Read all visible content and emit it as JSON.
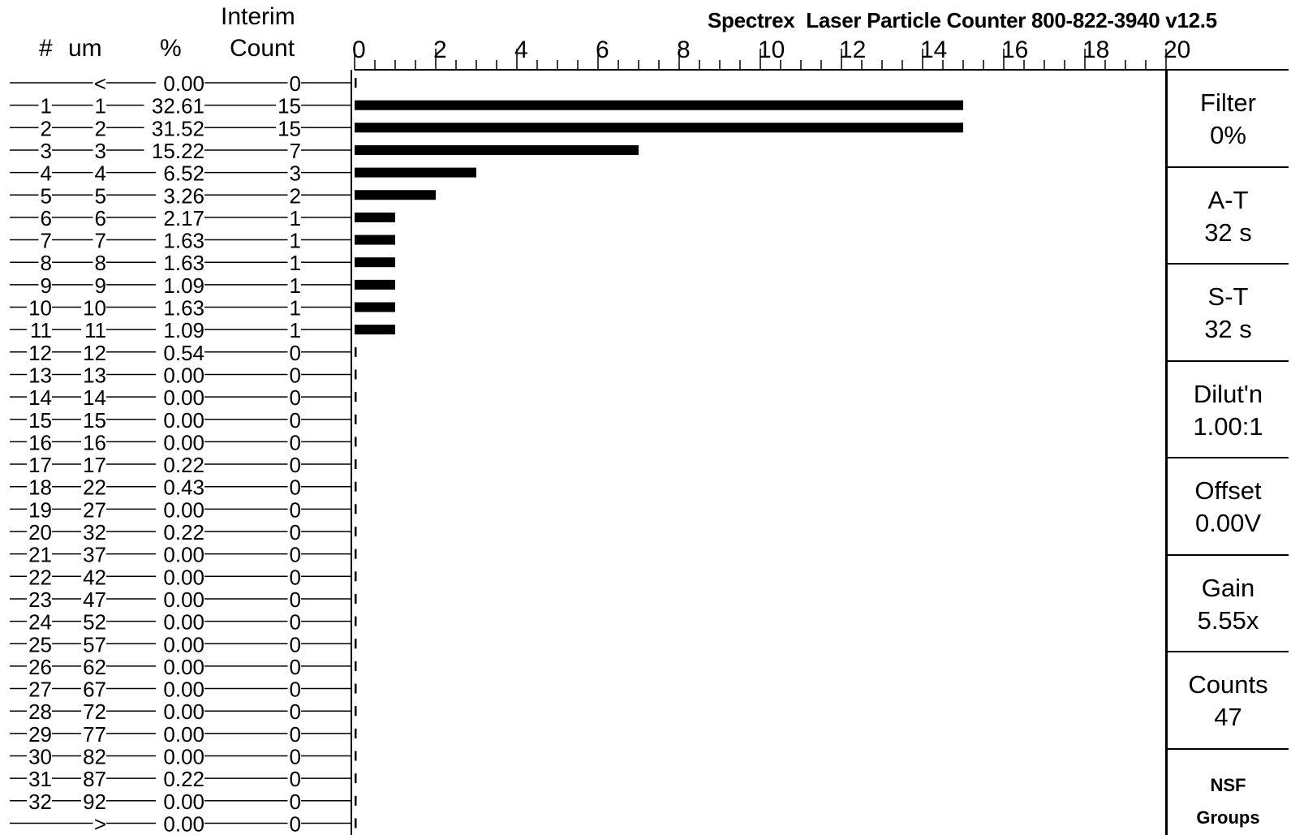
{
  "title": "Spectrex  Laser Particle Counter 800-822-3940 v12.5",
  "headers": {
    "number": "#",
    "um": "um",
    "percent": "%",
    "interim": "Interim",
    "count": "Count"
  },
  "rows": [
    {
      "num": "",
      "um": "<",
      "pct": "0.00",
      "count": "0"
    },
    {
      "num": "1",
      "um": "1",
      "pct": "32.61",
      "count": "15"
    },
    {
      "num": "2",
      "um": "2",
      "pct": "31.52",
      "count": "15"
    },
    {
      "num": "3",
      "um": "3",
      "pct": "15.22",
      "count": "7"
    },
    {
      "num": "4",
      "um": "4",
      "pct": "6.52",
      "count": "3"
    },
    {
      "num": "5",
      "um": "5",
      "pct": "3.26",
      "count": "2"
    },
    {
      "num": "6",
      "um": "6",
      "pct": "2.17",
      "count": "1"
    },
    {
      "num": "7",
      "um": "7",
      "pct": "1.63",
      "count": "1"
    },
    {
      "num": "8",
      "um": "8",
      "pct": "1.63",
      "count": "1"
    },
    {
      "num": "9",
      "um": "9",
      "pct": "1.09",
      "count": "1"
    },
    {
      "num": "10",
      "um": "10",
      "pct": "1.63",
      "count": "1"
    },
    {
      "num": "11",
      "um": "11",
      "pct": "1.09",
      "count": "1"
    },
    {
      "num": "12",
      "um": "12",
      "pct": "0.54",
      "count": "0"
    },
    {
      "num": "13",
      "um": "13",
      "pct": "0.00",
      "count": "0"
    },
    {
      "num": "14",
      "um": "14",
      "pct": "0.00",
      "count": "0"
    },
    {
      "num": "15",
      "um": "15",
      "pct": "0.00",
      "count": "0"
    },
    {
      "num": "16",
      "um": "16",
      "pct": "0.00",
      "count": "0"
    },
    {
      "num": "17",
      "um": "17",
      "pct": "0.22",
      "count": "0"
    },
    {
      "num": "18",
      "um": "22",
      "pct": "0.43",
      "count": "0"
    },
    {
      "num": "19",
      "um": "27",
      "pct": "0.00",
      "count": "0"
    },
    {
      "num": "20",
      "um": "32",
      "pct": "0.22",
      "count": "0"
    },
    {
      "num": "21",
      "um": "37",
      "pct": "0.00",
      "count": "0"
    },
    {
      "num": "22",
      "um": "42",
      "pct": "0.00",
      "count": "0"
    },
    {
      "num": "23",
      "um": "47",
      "pct": "0.00",
      "count": "0"
    },
    {
      "num": "24",
      "um": "52",
      "pct": "0.00",
      "count": "0"
    },
    {
      "num": "25",
      "um": "57",
      "pct": "0.00",
      "count": "0"
    },
    {
      "num": "26",
      "um": "62",
      "pct": "0.00",
      "count": "0"
    },
    {
      "num": "27",
      "um": "67",
      "pct": "0.00",
      "count": "0"
    },
    {
      "num": "28",
      "um": "72",
      "pct": "0.00",
      "count": "0"
    },
    {
      "num": "29",
      "um": "77",
      "pct": "0.00",
      "count": "0"
    },
    {
      "num": "30",
      "um": "82",
      "pct": "0.00",
      "count": "0"
    },
    {
      "num": "31",
      "um": "87",
      "pct": "0.22",
      "count": "0"
    },
    {
      "num": "32",
      "um": "92",
      "pct": "0.00",
      "count": "0"
    },
    {
      "num": "",
      "um": ">",
      "pct": "0.00",
      "count": "0"
    }
  ],
  "side_panel": [
    {
      "label": "Filter",
      "value": "0%"
    },
    {
      "label": "A-T",
      "value": "32 s"
    },
    {
      "label": "S-T",
      "value": "32 s"
    },
    {
      "label": "Dilut'n",
      "value": "1.00:1"
    },
    {
      "label": "Offset",
      "value": "0.00V"
    },
    {
      "label": "Gain",
      "value": "5.55x"
    },
    {
      "label": "Counts",
      "value": "47"
    },
    {
      "label": "NSF",
      "value": "Groups"
    }
  ],
  "chart_data": {
    "type": "bar",
    "orientation": "horizontal",
    "title": "Spectrex  Laser Particle Counter 800-822-3940 v12.5",
    "xlim": [
      0,
      20
    ],
    "xticks": [
      "0",
      "2",
      "4",
      "6",
      "8",
      "10",
      "12",
      "14",
      "16",
      "18",
      "20"
    ],
    "values": [
      0,
      15,
      15,
      7,
      3,
      2,
      1,
      1,
      1,
      1,
      1,
      1,
      0,
      0,
      0,
      0,
      0,
      0,
      0,
      0,
      0,
      0,
      0,
      0,
      0,
      0,
      0,
      0,
      0,
      0,
      0,
      0,
      0,
      0
    ],
    "bar_color": "#000000",
    "grid": false
  }
}
